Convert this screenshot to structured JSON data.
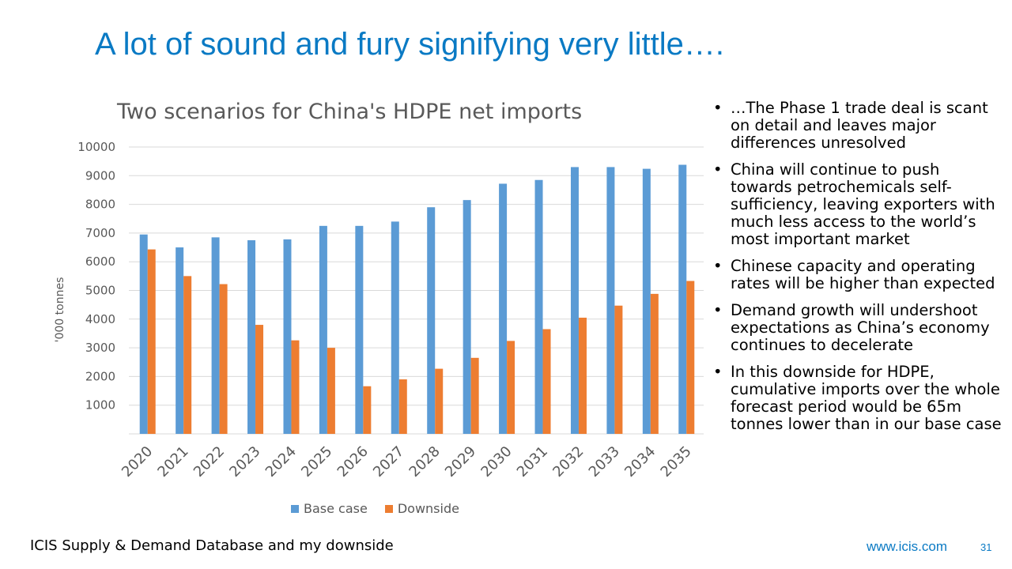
{
  "slide": {
    "title": "A lot of sound and fury signifying very little….",
    "source": "ICIS Supply & Demand Database and my downside",
    "website": "www.icis.com",
    "page_number": "31"
  },
  "bullets": [
    "…The Phase 1 trade deal is scant on detail and leaves major differences unresolved",
    "China will continue to push towards petrochemicals self-sufficiency, leaving exporters with much less access to the world’s most important market",
    "Chinese capacity and operating rates will be higher than expected",
    " Demand growth will undershoot expectations as China’s economy continues to decelerate",
    "In this downside for HDPE, cumulative imports over the whole forecast period would be 65m tonnes lower than in our base case"
  ],
  "chart_data": {
    "type": "bar",
    "title": "Two scenarios for China's HDPE net imports",
    "xlabel": "",
    "ylabel": "'000 tonnes",
    "ylim": [
      0,
      10000
    ],
    "yticks": [
      1000,
      2000,
      3000,
      4000,
      5000,
      6000,
      7000,
      8000,
      9000,
      10000
    ],
    "grid": true,
    "legend_position": "bottom",
    "categories": [
      "2020",
      "2021",
      "2022",
      "2023",
      "2024",
      "2025",
      "2026",
      "2027",
      "2028",
      "2029",
      "2030",
      "2031",
      "2032",
      "2033",
      "2034",
      "2035"
    ],
    "series": [
      {
        "name": "Base case",
        "color": "#5b9bd5",
        "values": [
          6950,
          6500,
          6850,
          6750,
          6780,
          7250,
          7250,
          7400,
          7900,
          8150,
          8720,
          8850,
          9300,
          9300,
          9240,
          9380
        ]
      },
      {
        "name": "Downside",
        "color": "#ed7d31",
        "values": [
          6430,
          5500,
          5220,
          3800,
          3260,
          3000,
          1660,
          1900,
          2270,
          2650,
          3240,
          3650,
          4050,
          4470,
          4880,
          5330
        ]
      }
    ]
  }
}
